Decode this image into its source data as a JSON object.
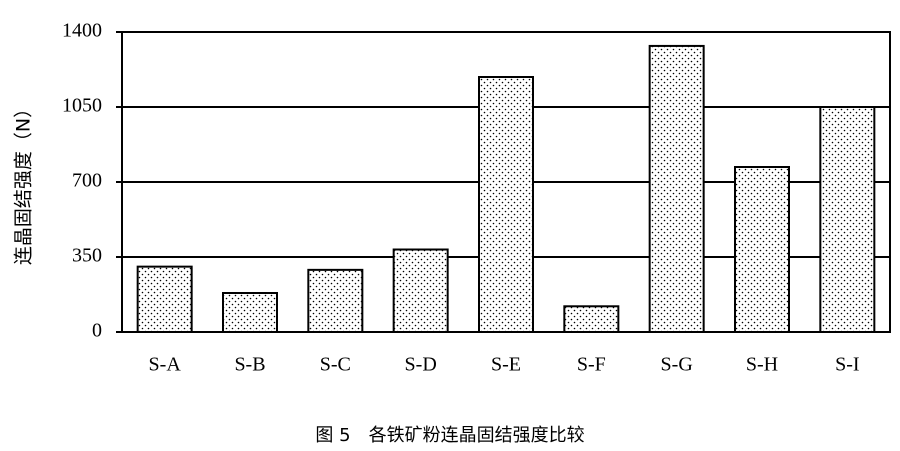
{
  "chart_data": {
    "type": "bar",
    "caption": "图 5　各铁矿粉连晶固结强度比较",
    "y_label": "连晶固结强度（N）",
    "categories": [
      "S-A",
      "S-B",
      "S-C",
      "S-D",
      "S-E",
      "S-F",
      "S-G",
      "S-H",
      "S-I"
    ],
    "values": [
      305,
      182,
      290,
      385,
      1190,
      120,
      1335,
      770,
      1050
    ],
    "color": "#000000",
    "ylim": [
      0,
      1400
    ],
    "yticks": [
      0,
      350,
      700,
      1050,
      1400
    ],
    "grid": true
  }
}
